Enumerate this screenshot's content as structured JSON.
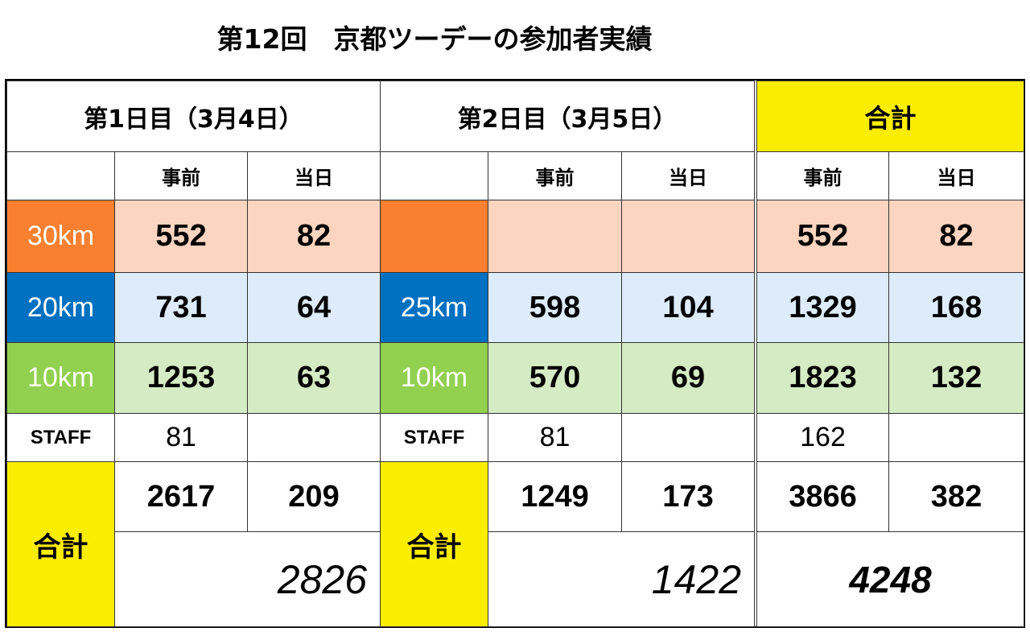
{
  "title": "第12回　京都ツーデーの参加者実績",
  "sections": [
    {
      "header": "第1日目（3月4日）",
      "columns": [
        "事前",
        "当日"
      ],
      "rows": [
        {
          "label": "30km",
          "values": [
            552,
            82
          ]
        },
        {
          "label": "20km",
          "values": [
            731,
            64
          ]
        },
        {
          "label": "10km",
          "values": [
            1253,
            63
          ]
        },
        {
          "label": "STAFF",
          "values": [
            81,
            null
          ]
        }
      ],
      "total_label": "合計",
      "totals": [
        2617,
        209
      ],
      "grand_total": 2826
    },
    {
      "header": "第2日目（3月5日）",
      "columns": [
        "事前",
        "当日"
      ],
      "rows": [
        {
          "label": null,
          "values": [
            null,
            null
          ]
        },
        {
          "label": "25km",
          "values": [
            598,
            104
          ]
        },
        {
          "label": "10km",
          "values": [
            570,
            69
          ]
        },
        {
          "label": "STAFF",
          "values": [
            81,
            null
          ]
        }
      ],
      "total_label": "合計",
      "totals": [
        1249,
        173
      ],
      "grand_total": 1422
    },
    {
      "header": "合計",
      "columns": [
        "事前",
        "当日"
      ],
      "rows": [
        {
          "values": [
            552,
            82
          ]
        },
        {
          "values": [
            1329,
            168
          ]
        },
        {
          "values": [
            1823,
            132
          ]
        },
        {
          "values": [
            162,
            null
          ]
        }
      ],
      "totals": [
        3866,
        382
      ],
      "grand_total": 4248
    }
  ]
}
